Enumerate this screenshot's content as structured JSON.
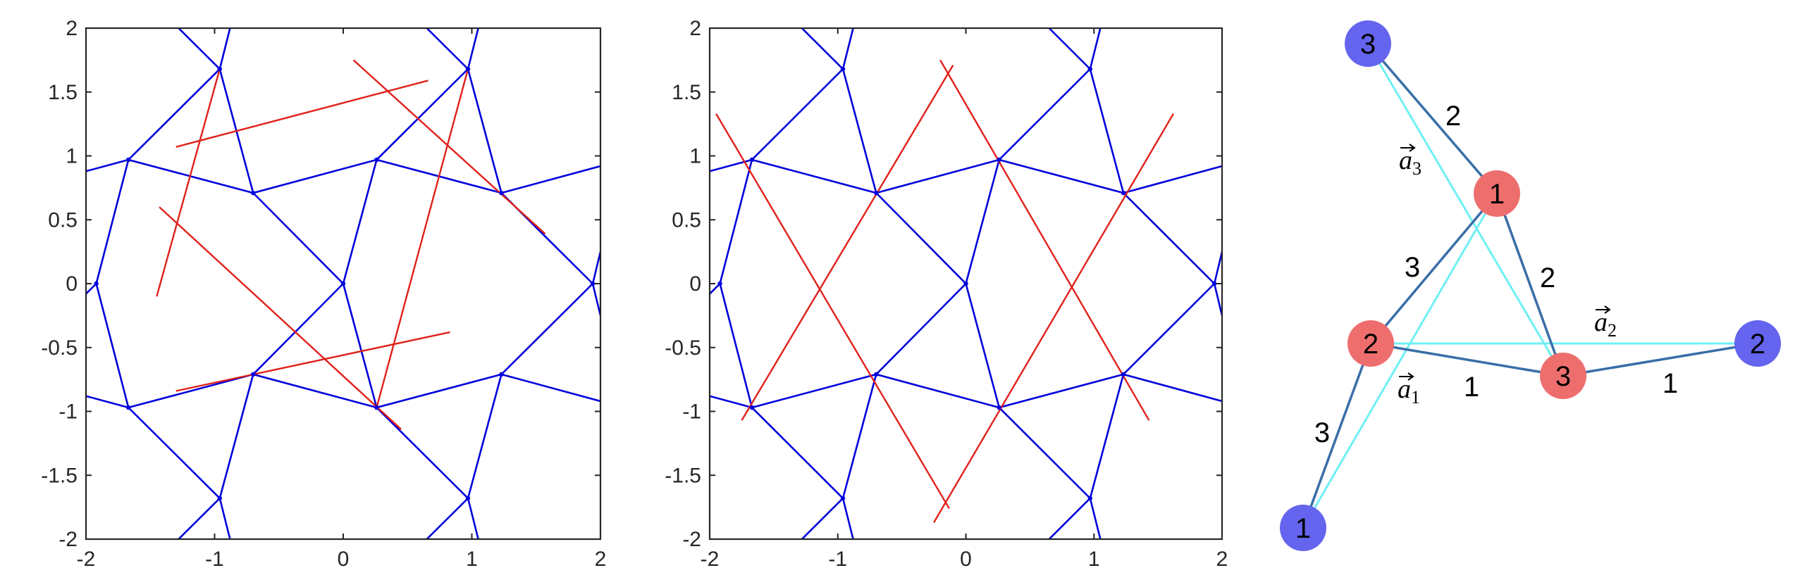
{
  "chart_data": [
    {
      "type": "line",
      "panel": "left",
      "xlim": [
        -2,
        2
      ],
      "ylim": [
        -2,
        2
      ],
      "xticks": [
        -2,
        -1,
        0,
        1,
        2
      ],
      "yticks": [
        -2,
        -1.5,
        -1,
        -0.5,
        0,
        0.5,
        1,
        1.5,
        2
      ],
      "xtick_labels": [
        "-2",
        "-1",
        "0",
        "1",
        "2"
      ],
      "ytick_labels": [
        "-2",
        "-1.5",
        "-1",
        "-0.5",
        "0",
        "0.5",
        "1",
        "1.5",
        "2"
      ],
      "grid": false,
      "colors": {
        "network": "#0000dd",
        "lines": "#e0201a",
        "axes": "#262626"
      },
      "blue_segments": [
        [
          -2.0,
          0.88,
          -1.67,
          0.97
        ],
        [
          -1.67,
          0.97,
          -0.7,
          0.71
        ],
        [
          -0.7,
          0.71,
          0.26,
          0.97
        ],
        [
          0.26,
          0.97,
          1.23,
          0.71
        ],
        [
          1.23,
          0.71,
          2.0,
          0.92
        ],
        [
          -2.0,
          -0.88,
          -1.67,
          -0.97
        ],
        [
          -1.67,
          -0.97,
          -0.7,
          -0.71
        ],
        [
          -0.7,
          -0.71,
          0.26,
          -0.97
        ],
        [
          0.26,
          -0.97,
          1.23,
          -0.71
        ],
        [
          1.23,
          -0.71,
          2.0,
          -0.92
        ],
        [
          -1.67,
          0.97,
          -1.92,
          0.0
        ],
        [
          -1.92,
          0.0,
          -1.67,
          -0.97
        ],
        [
          -1.92,
          0.0,
          -2.0,
          -0.08
        ],
        [
          -1.67,
          0.97,
          -0.96,
          1.68
        ],
        [
          -0.96,
          1.68,
          -0.7,
          0.71
        ],
        [
          -0.96,
          1.68,
          -0.88,
          2.0
        ],
        [
          -0.96,
          1.68,
          -1.28,
          2.0
        ],
        [
          -0.7,
          0.71,
          0.0,
          0.0
        ],
        [
          0.0,
          0.0,
          0.26,
          0.97
        ],
        [
          0.0,
          0.0,
          -0.7,
          -0.71
        ],
        [
          0.0,
          0.0,
          0.26,
          -0.97
        ],
        [
          0.26,
          0.97,
          0.97,
          1.68
        ],
        [
          0.97,
          1.68,
          1.23,
          0.71
        ],
        [
          0.97,
          1.68,
          1.05,
          2.0
        ],
        [
          0.97,
          1.68,
          0.65,
          2.0
        ],
        [
          1.23,
          0.71,
          1.94,
          0.0
        ],
        [
          1.94,
          0.0,
          2.0,
          0.25
        ],
        [
          1.94,
          0.0,
          2.0,
          -0.25
        ],
        [
          1.94,
          0.0,
          1.23,
          -0.71
        ],
        [
          -1.67,
          -0.97,
          -0.96,
          -1.68
        ],
        [
          -0.96,
          -1.68,
          -0.7,
          -0.71
        ],
        [
          -0.96,
          -1.68,
          -0.88,
          -2.0
        ],
        [
          -0.96,
          -1.68,
          -1.28,
          -2.0
        ],
        [
          0.26,
          -0.97,
          0.97,
          -1.68
        ],
        [
          0.97,
          -1.68,
          1.23,
          -0.71
        ],
        [
          0.97,
          -1.68,
          1.05,
          -2.0
        ],
        [
          0.97,
          -1.68,
          0.65,
          -2.0
        ]
      ],
      "red_segments": [
        [
          -1.3,
          1.07,
          0.66,
          1.59
        ],
        [
          -1.45,
          -0.1,
          -0.96,
          1.68
        ],
        [
          -1.43,
          0.6,
          0.45,
          -1.14
        ],
        [
          0.08,
          1.75,
          1.57,
          0.39
        ],
        [
          0.26,
          -0.97,
          0.97,
          1.68
        ],
        [
          -1.3,
          -0.84,
          0.83,
          -0.38
        ]
      ],
      "vertices": [
        [
          -1.67,
          0.97
        ],
        [
          -0.7,
          0.71
        ],
        [
          0.26,
          0.97
        ],
        [
          1.23,
          0.71
        ],
        [
          -1.67,
          -0.97
        ],
        [
          -0.7,
          -0.71
        ],
        [
          0.26,
          -0.97
        ],
        [
          1.23,
          -0.71
        ],
        [
          -1.92,
          0.0
        ],
        [
          0.0,
          0.0
        ],
        [
          1.94,
          0.0
        ],
        [
          -0.96,
          1.68
        ],
        [
          0.97,
          1.68
        ],
        [
          -0.96,
          -1.68
        ],
        [
          0.97,
          -1.68
        ]
      ]
    },
    {
      "type": "line",
      "panel": "middle",
      "xlim": [
        -2,
        2
      ],
      "ylim": [
        -2,
        2
      ],
      "xticks": [
        -2,
        -1,
        0,
        1,
        2
      ],
      "yticks": [
        -2,
        -1.5,
        -1,
        -0.5,
        0,
        0.5,
        1,
        1.5,
        2
      ],
      "xtick_labels": [
        "-2",
        "-1",
        "0",
        "1",
        "2"
      ],
      "ytick_labels": [
        "-2",
        "-1.5",
        "-1",
        "-0.5",
        "0",
        "0.5",
        "1",
        "1.5",
        "2"
      ],
      "grid": false,
      "colors": {
        "network": "#0000dd",
        "lines": "#e0201a",
        "axes": "#262626"
      },
      "blue_segments": [
        [
          -2.0,
          0.88,
          -1.67,
          0.97
        ],
        [
          -1.67,
          0.97,
          -0.7,
          0.71
        ],
        [
          -0.7,
          0.71,
          0.26,
          0.97
        ],
        [
          0.26,
          0.97,
          1.23,
          0.71
        ],
        [
          1.23,
          0.71,
          2.0,
          0.92
        ],
        [
          -2.0,
          -0.88,
          -1.67,
          -0.97
        ],
        [
          -1.67,
          -0.97,
          -0.7,
          -0.71
        ],
        [
          -0.7,
          -0.71,
          0.26,
          -0.97
        ],
        [
          0.26,
          -0.97,
          1.23,
          -0.71
        ],
        [
          1.23,
          -0.71,
          2.0,
          -0.92
        ],
        [
          -1.67,
          0.97,
          -1.92,
          0.0
        ],
        [
          -1.92,
          0.0,
          -1.67,
          -0.97
        ],
        [
          -1.92,
          0.0,
          -2.0,
          -0.08
        ],
        [
          -1.67,
          0.97,
          -0.96,
          1.68
        ],
        [
          -0.96,
          1.68,
          -0.7,
          0.71
        ],
        [
          -0.96,
          1.68,
          -0.88,
          2.0
        ],
        [
          -0.96,
          1.68,
          -1.28,
          2.0
        ],
        [
          -0.7,
          0.71,
          0.0,
          0.0
        ],
        [
          0.0,
          0.0,
          0.26,
          0.97
        ],
        [
          0.0,
          0.0,
          -0.7,
          -0.71
        ],
        [
          0.0,
          0.0,
          0.26,
          -0.97
        ],
        [
          0.26,
          0.97,
          0.97,
          1.68
        ],
        [
          0.97,
          1.68,
          1.23,
          0.71
        ],
        [
          0.97,
          1.68,
          1.05,
          2.0
        ],
        [
          0.97,
          1.68,
          0.65,
          2.0
        ],
        [
          1.23,
          0.71,
          1.94,
          0.0
        ],
        [
          1.94,
          0.0,
          2.0,
          0.25
        ],
        [
          1.94,
          0.0,
          2.0,
          -0.25
        ],
        [
          1.94,
          0.0,
          1.23,
          -0.71
        ],
        [
          -1.67,
          -0.97,
          -0.96,
          -1.68
        ],
        [
          -0.96,
          -1.68,
          -0.7,
          -0.71
        ],
        [
          -0.96,
          -1.68,
          -0.88,
          -2.0
        ],
        [
          -0.96,
          -1.68,
          -1.28,
          -2.0
        ],
        [
          0.26,
          -0.97,
          0.97,
          -1.68
        ],
        [
          0.97,
          -1.68,
          1.23,
          -0.71
        ],
        [
          0.97,
          -1.68,
          1.05,
          -2.0
        ],
        [
          0.97,
          -1.68,
          0.65,
          -2.0
        ]
      ],
      "red_segments": [
        [
          -1.95,
          1.33,
          -0.13,
          -1.76
        ],
        [
          -1.75,
          -1.07,
          -0.1,
          1.71
        ],
        [
          -0.25,
          -1.87,
          1.62,
          1.33
        ],
        [
          -0.2,
          1.75,
          1.43,
          -1.07
        ]
      ],
      "vertices": [
        [
          -1.67,
          0.97
        ],
        [
          -0.7,
          0.71
        ],
        [
          0.26,
          0.97
        ],
        [
          1.23,
          0.71
        ],
        [
          -1.67,
          -0.97
        ],
        [
          -0.7,
          -0.71
        ],
        [
          0.26,
          -0.97
        ],
        [
          1.23,
          -0.71
        ],
        [
          -1.92,
          0.0
        ],
        [
          0.0,
          0.0
        ],
        [
          1.94,
          0.0
        ],
        [
          -0.96,
          1.68
        ],
        [
          0.97,
          1.68
        ],
        [
          -0.96,
          -1.68
        ],
        [
          0.97,
          -1.68
        ]
      ]
    }
  ],
  "diagram": {
    "colors": {
      "red_node": "#ee6e6e",
      "blue_node": "#6464ee",
      "bond": "#3a6ea8",
      "lattice_vector": "#6ff0f4"
    },
    "nodes": [
      {
        "id": "top-blue-3",
        "label": "3",
        "color": "blue"
      },
      {
        "id": "center-red-1",
        "label": "1",
        "color": "red"
      },
      {
        "id": "left-red-2",
        "label": "2",
        "color": "red"
      },
      {
        "id": "right-blue-2",
        "label": "2",
        "color": "blue"
      },
      {
        "id": "center-red-3",
        "label": "3",
        "color": "red"
      },
      {
        "id": "bottom-blue-1",
        "label": "1",
        "color": "blue"
      }
    ],
    "bonds": [
      {
        "from": "top-blue-3",
        "to": "center-red-1",
        "label": "2"
      },
      {
        "from": "center-red-1",
        "to": "center-red-3",
        "label": "2"
      },
      {
        "from": "left-red-2",
        "to": "center-red-1",
        "label": "3"
      },
      {
        "from": "left-red-2",
        "to": "center-red-3",
        "label": "1"
      },
      {
        "from": "center-red-3",
        "to": "right-blue-2",
        "label": "1"
      },
      {
        "from": "bottom-blue-1",
        "to": "left-red-2",
        "label": "3"
      }
    ],
    "lattice_vectors": [
      {
        "from": "left-red-2",
        "to": "right-blue-2",
        "symbol": "a",
        "subscript": "2"
      },
      {
        "from": "top-blue-3",
        "to": "center-red-3",
        "symbol": "a",
        "subscript": "3"
      },
      {
        "from": "bottom-blue-1",
        "to": "center-red-1",
        "symbol": "a",
        "subscript": "1"
      }
    ]
  }
}
